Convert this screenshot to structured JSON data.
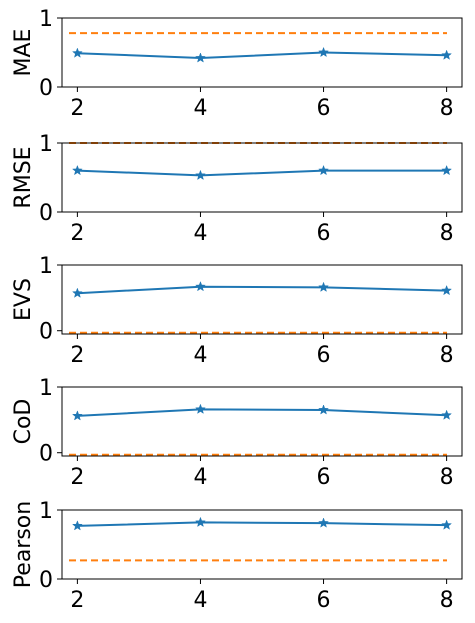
{
  "chart_data": [
    {
      "type": "line",
      "x": [
        2,
        4,
        6,
        8
      ],
      "ylabel": "MAE",
      "ylim": [
        0,
        1
      ],
      "yticks": [
        0,
        1
      ],
      "xticks": [
        2,
        4,
        6,
        8
      ],
      "series": [
        {
          "values": [
            0.49,
            0.42,
            0.5,
            0.46
          ],
          "color": "#1f77b4",
          "style": "solid",
          "marker": "star"
        },
        {
          "values": [
            0.78,
            0.78,
            0.78,
            0.78
          ],
          "color": "#ff7f0e",
          "style": "dashed"
        }
      ]
    },
    {
      "type": "line",
      "x": [
        2,
        4,
        6,
        8
      ],
      "ylabel": "RMSE",
      "ylim": [
        0,
        1
      ],
      "yticks": [
        0,
        1
      ],
      "xticks": [
        2,
        4,
        6,
        8
      ],
      "series": [
        {
          "values": [
            0.6,
            0.53,
            0.6,
            0.6
          ],
          "color": "#1f77b4",
          "style": "solid",
          "marker": "star"
        },
        {
          "values": [
            1.0,
            1.0,
            1.0,
            1.0
          ],
          "color": "#ff7f0e",
          "style": "dashed"
        }
      ]
    },
    {
      "type": "line",
      "x": [
        2,
        4,
        6,
        8
      ],
      "ylabel": "EVS",
      "ylim": [
        -0.05,
        1
      ],
      "yticks": [
        0,
        1
      ],
      "xticks": [
        2,
        4,
        6,
        8
      ],
      "series": [
        {
          "values": [
            0.57,
            0.67,
            0.66,
            0.61
          ],
          "color": "#1f77b4",
          "style": "solid",
          "marker": "star"
        },
        {
          "values": [
            -0.03,
            -0.03,
            -0.03,
            -0.03
          ],
          "color": "#ff7f0e",
          "style": "dashed"
        }
      ]
    },
    {
      "type": "line",
      "x": [
        2,
        4,
        6,
        8
      ],
      "ylabel": "CoD",
      "ylim": [
        -0.05,
        1
      ],
      "yticks": [
        0,
        1
      ],
      "xticks": [
        2,
        4,
        6,
        8
      ],
      "series": [
        {
          "values": [
            0.56,
            0.66,
            0.65,
            0.57
          ],
          "color": "#1f77b4",
          "style": "solid",
          "marker": "star"
        },
        {
          "values": [
            -0.03,
            -0.03,
            -0.03,
            -0.03
          ],
          "color": "#ff7f0e",
          "style": "dashed"
        }
      ]
    },
    {
      "type": "line",
      "x": [
        2,
        4,
        6,
        8
      ],
      "ylabel": "Pearson",
      "ylim": [
        0,
        1
      ],
      "yticks": [
        0,
        1
      ],
      "xticks": [
        2,
        4,
        6,
        8
      ],
      "series": [
        {
          "values": [
            0.77,
            0.82,
            0.81,
            0.78
          ],
          "color": "#1f77b4",
          "style": "solid",
          "marker": "star"
        },
        {
          "values": [
            0.27,
            0.27,
            0.27,
            0.27
          ],
          "color": "#ff7f0e",
          "style": "dashed"
        }
      ]
    }
  ]
}
